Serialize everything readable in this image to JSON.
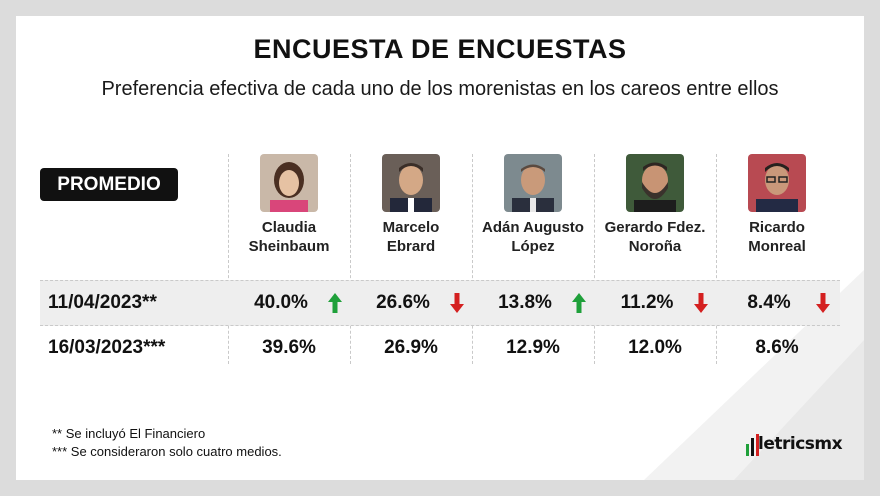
{
  "title": "ENCUESTA DE ENCUESTAS",
  "subtitle": "Preferencia efectiva de cada uno de los morenistas en los careos entre ellos",
  "badge": "PROMEDIO",
  "colors": {
    "up": "#1fa03a",
    "down": "#d42020",
    "badge_bg": "#111111",
    "highlight_row": "#eeeeee"
  },
  "candidates": [
    {
      "name_line1": "Claudia",
      "name_line2": "Sheinbaum"
    },
    {
      "name_line1": "Marcelo",
      "name_line2": "Ebrard"
    },
    {
      "name_line1": "Adán Augusto",
      "name_line2": "López"
    },
    {
      "name_line1": "Gerardo Fdez.",
      "name_line2": "Noroña"
    },
    {
      "name_line1": "Ricardo",
      "name_line2": "Monreal"
    }
  ],
  "chart_data": {
    "type": "table",
    "columns": [
      "Claudia Sheinbaum",
      "Marcelo Ebrard",
      "Adán Augusto López",
      "Gerardo Fdez. Noroña",
      "Ricardo Monreal"
    ],
    "rows": [
      {
        "label": "11/04/2023**",
        "values": [
          "40.0%",
          "26.6%",
          "13.8%",
          "11.2%",
          "8.4%"
        ],
        "trend": [
          "up",
          "down",
          "up",
          "down",
          "down"
        ]
      },
      {
        "label": "16/03/2023***",
        "values": [
          "39.6%",
          "26.9%",
          "12.9%",
          "12.0%",
          "8.6%"
        ]
      }
    ]
  },
  "footnotes": [
    "** Se incluyó El Financiero",
    "*** Se consideraron solo cuatro medios."
  ],
  "logo": {
    "text": "letricsmx",
    "icon": "metrics-bars-logo"
  }
}
